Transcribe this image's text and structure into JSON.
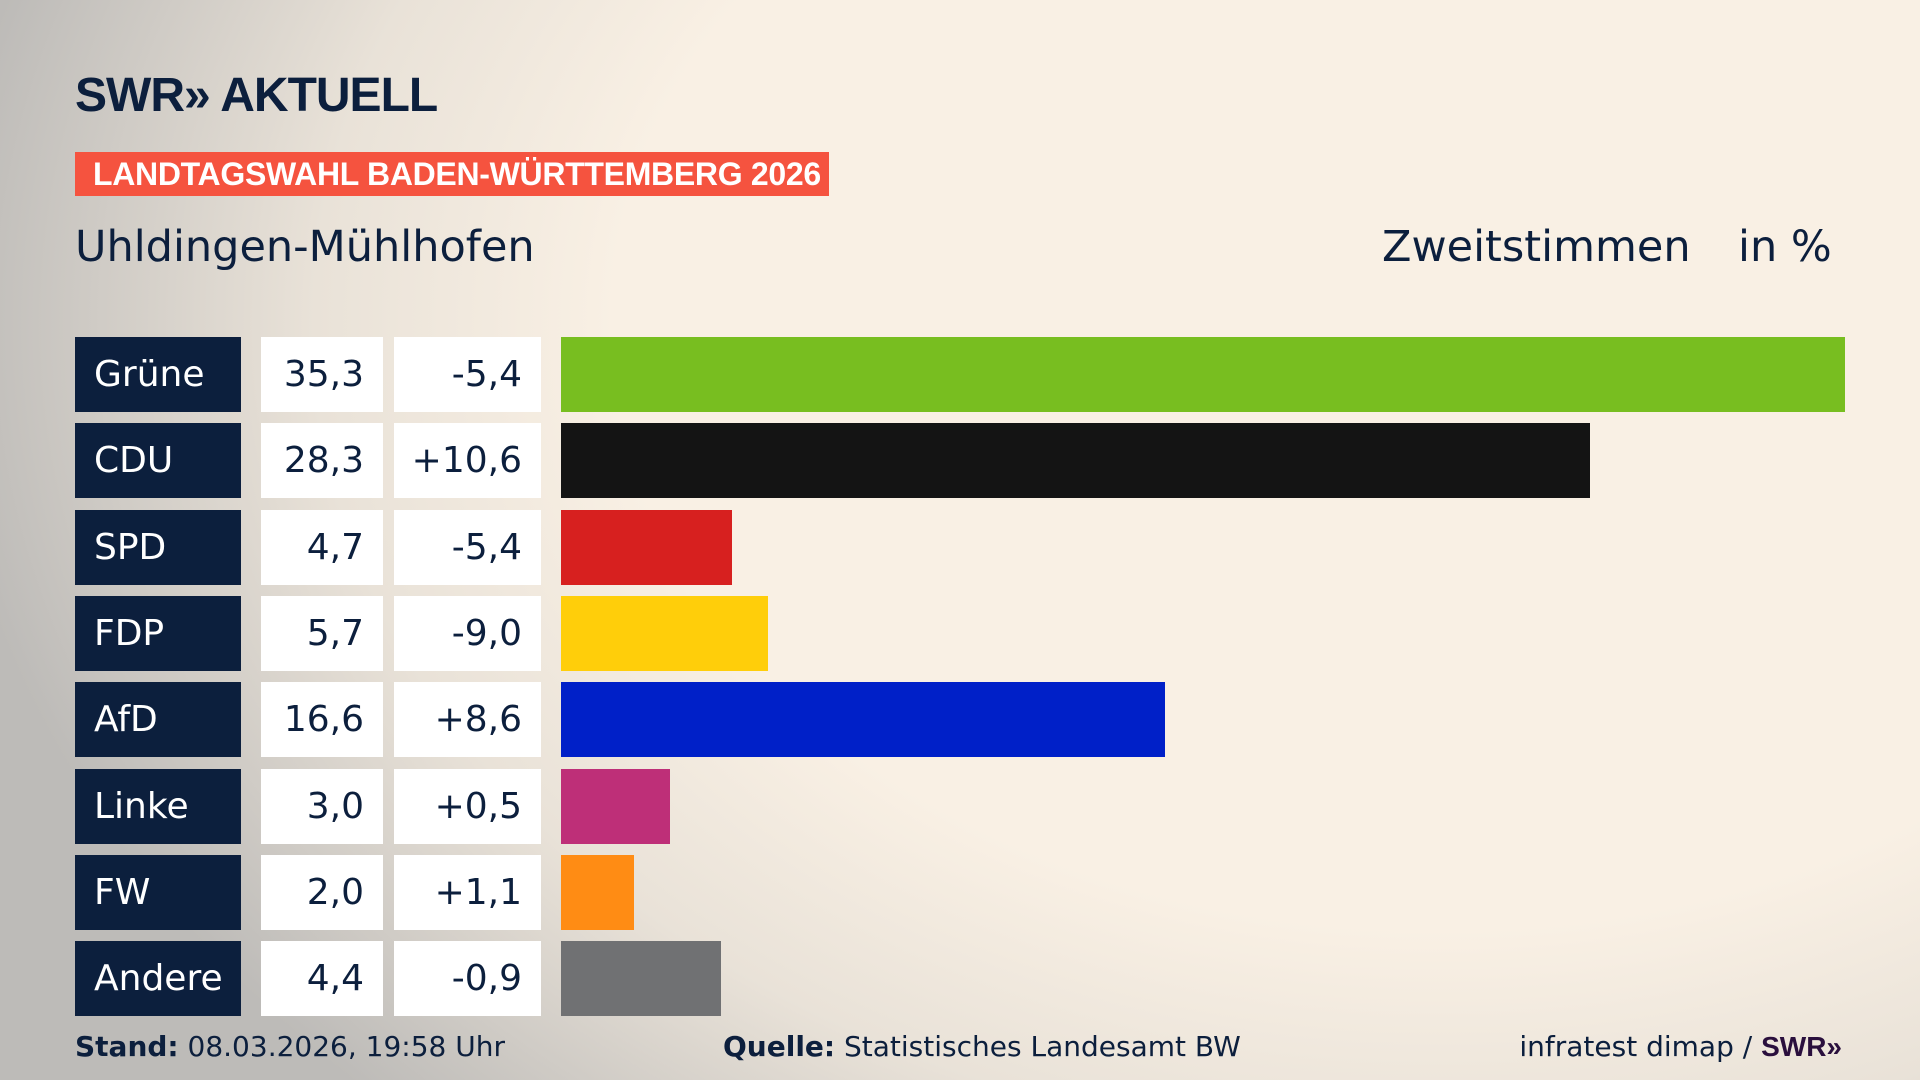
{
  "header": {
    "logo": "SWR» AKTUELL",
    "banner": "LANDTAGSWAHL BADEN-WÜRTTEMBERG 2026",
    "region": "Uhldingen-Mühlhofen",
    "metric": "Zweitstimmen",
    "unit": "in %"
  },
  "chart_data": {
    "type": "bar",
    "orientation": "horizontal",
    "categories": [
      "Grüne",
      "CDU",
      "SPD",
      "FDP",
      "AfD",
      "Linke",
      "FW",
      "Andere"
    ],
    "values": [
      35.3,
      28.3,
      4.7,
      5.7,
      16.6,
      3.0,
      2.0,
      4.4
    ],
    "values_label": [
      "35,3",
      "28,3",
      "4,7",
      "5,7",
      "16,6",
      "3,0",
      "2,0",
      "4,4"
    ],
    "diff": [
      -5.4,
      10.6,
      -5.4,
      -9.0,
      8.6,
      0.5,
      1.1,
      -0.9
    ],
    "diff_label": [
      "-5,4",
      "+10,6",
      "-5,4",
      "-9,0",
      "+8,6",
      "+0,5",
      "+1,1",
      "-0,9"
    ],
    "colors": [
      "#78be20",
      "#141414",
      "#d7201f",
      "#ffce0a",
      "#0020c8",
      "#be2f78",
      "#ff8c14",
      "#707173"
    ]
  },
  "footer": {
    "stand_label": "Stand:",
    "stand": "08.03.2026, 19:58 Uhr",
    "source_label": "Quelle:",
    "source": "Statistisches Landesamt BW",
    "credit": "infratest dimap / ",
    "credit_logo": "SWR»"
  }
}
